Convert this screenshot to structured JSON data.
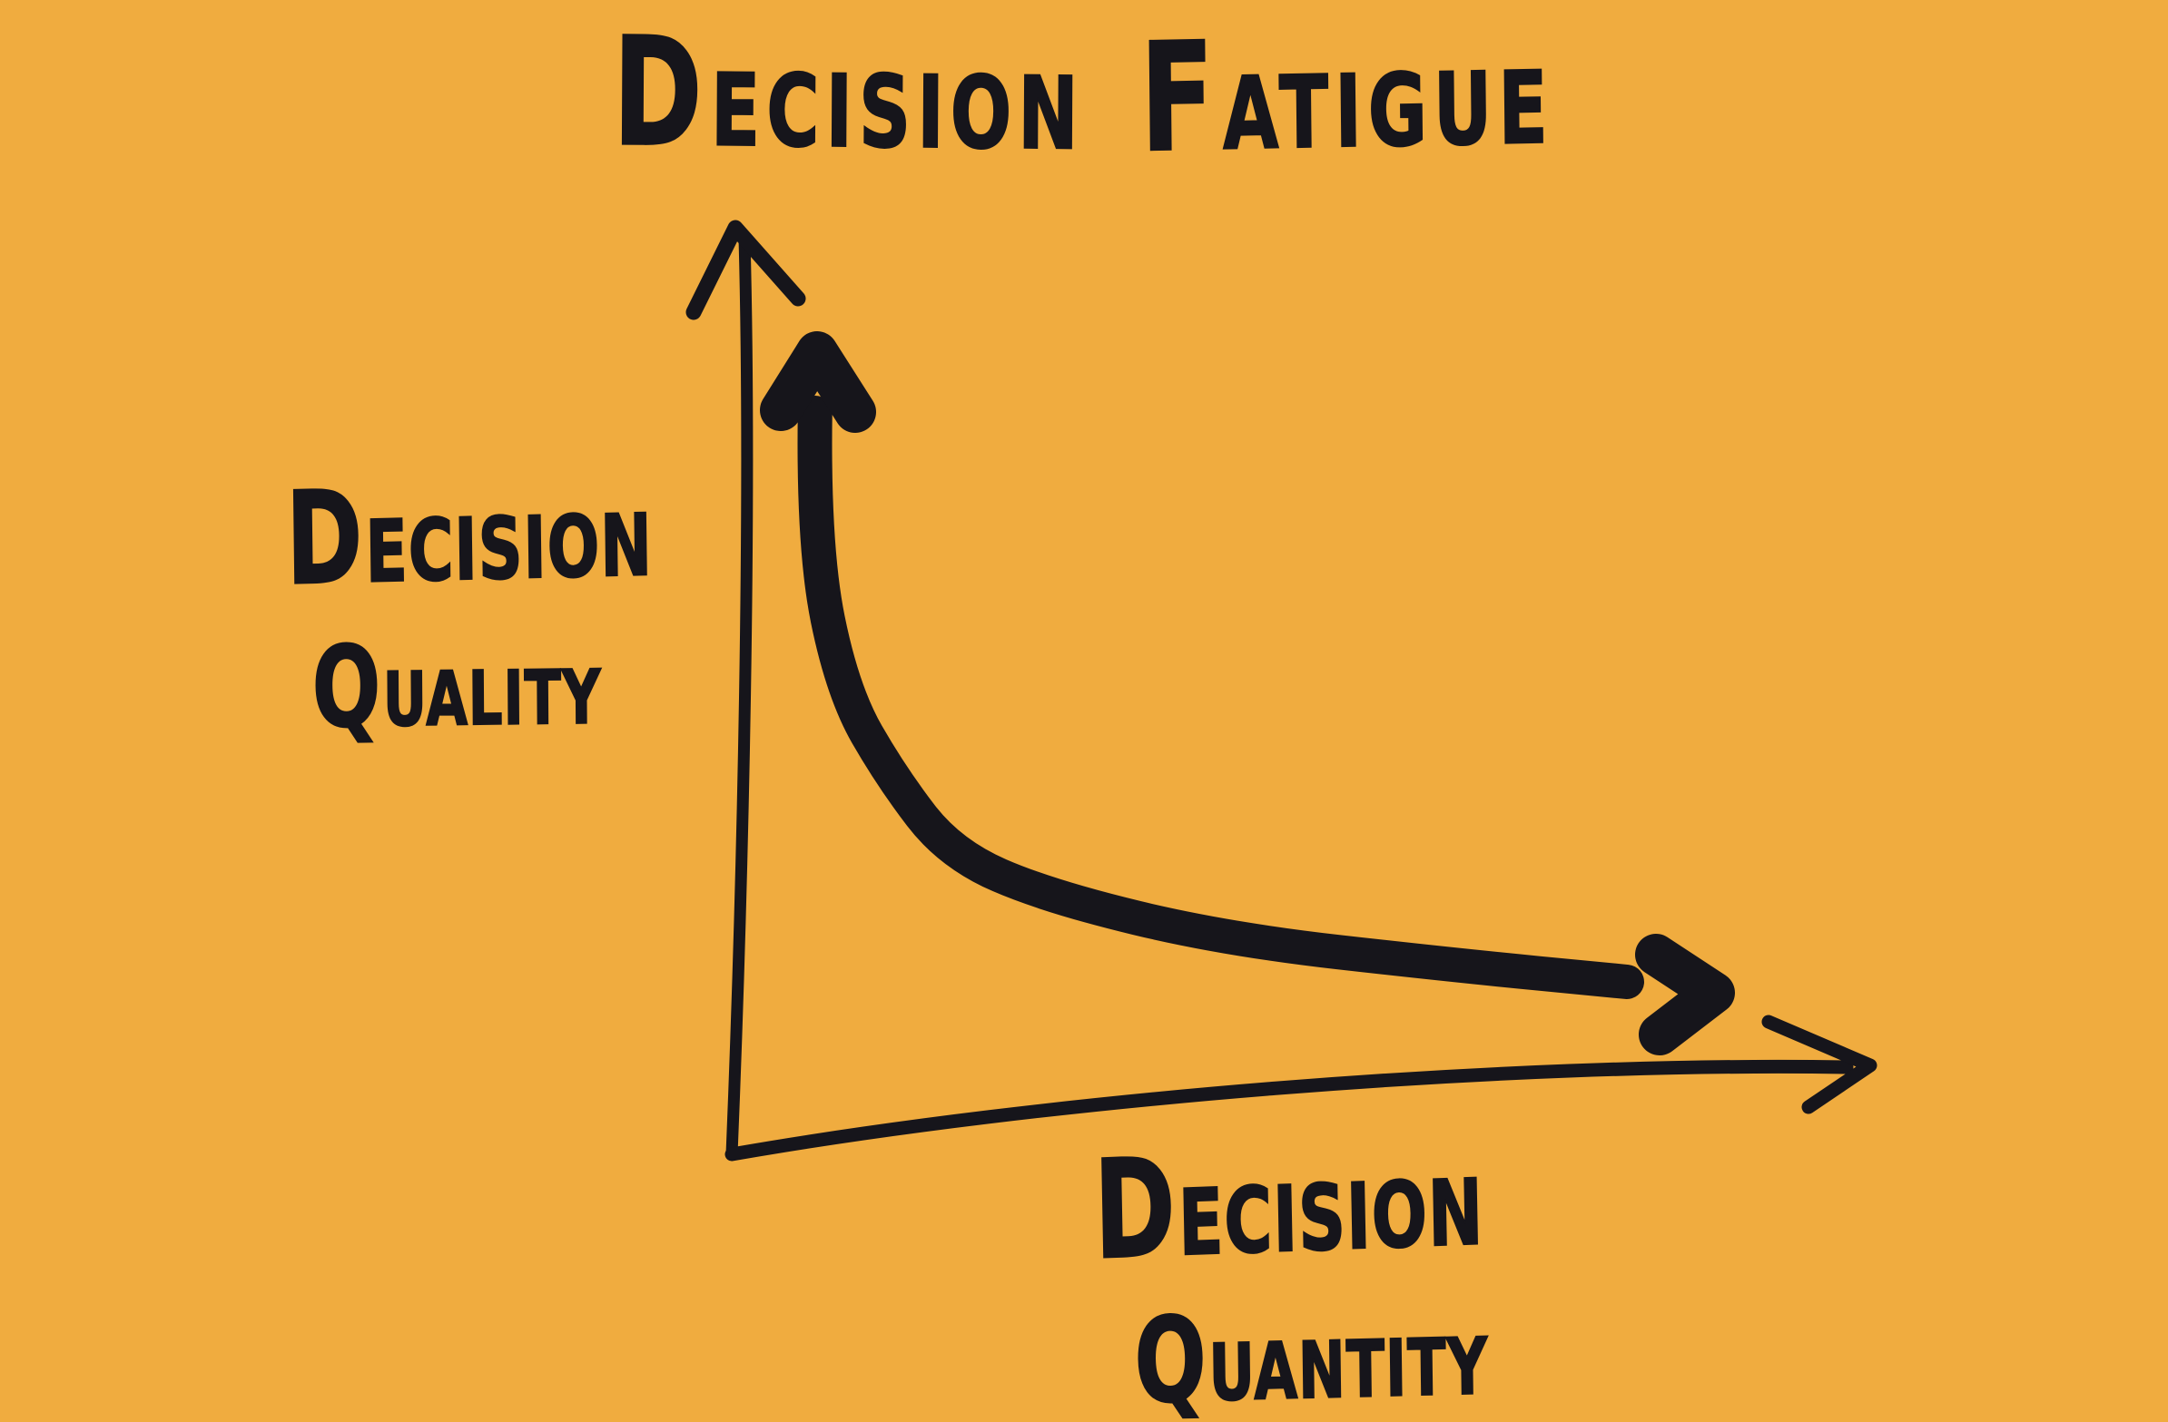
{
  "colors": {
    "background": "#f0ac3f",
    "ink": "#16151b"
  },
  "title": {
    "word1": "DECISION",
    "word2": "FATIGUE"
  },
  "y_axis_label": {
    "line1": "DECISION",
    "line2": "QUALITY"
  },
  "x_axis_label": {
    "line1": "DECISION",
    "line2": "QUANTITY"
  },
  "chart_data": {
    "type": "line",
    "style": "hand-drawn sketch, single thick stroke with arrowheads on both ends",
    "title": "Decision Fatigue",
    "xlabel": "Decision Quantity",
    "ylabel": "Decision Quality",
    "x_range": [
      0,
      10
    ],
    "y_range": [
      0,
      10
    ],
    "grid": false,
    "legend": null,
    "axis_tick_labels": "none",
    "axes": "bare x/y axes with open arrowheads at their positive ends",
    "series": [
      {
        "name": "decision quality vs decision quantity",
        "points": [
          [
            0.72,
            8.67
          ],
          [
            0.7,
            7.1
          ],
          [
            1.0,
            5.4
          ],
          [
            1.5,
            4.4
          ],
          [
            2.1,
            3.5
          ],
          [
            3.1,
            3.0
          ],
          [
            4.9,
            2.5
          ],
          [
            7.2,
            2.2
          ],
          [
            9.0,
            2.0
          ]
        ],
        "shape": "steep hyperbolic decay: quality is very high at low quantity and flattens near low quality as quantity grows",
        "endpoint_arrows": [
          "arrow pointing up at the high-quality / low-quantity end",
          "arrow pointing right at the low-quality / high-quantity end"
        ]
      }
    ]
  }
}
